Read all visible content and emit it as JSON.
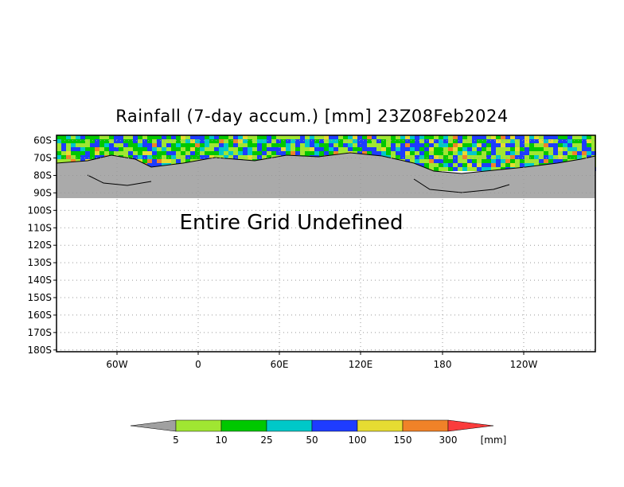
{
  "title": "Rainfall (7-day accum.) [mm] 23Z08Feb2024",
  "undefined_message": "Entire Grid Undefined",
  "map": {
    "projection": "lat-lon",
    "lon_labels": [
      "60W",
      "0",
      "60E",
      "120E",
      "180",
      "120W"
    ],
    "lat_labels": [
      "60S",
      "70S",
      "80S",
      "90S",
      "100S",
      "110S",
      "120S",
      "130S",
      "140S",
      "150S",
      "160S",
      "170S",
      "180S"
    ],
    "gridlines": "dotted",
    "undefined_fill_color": "#aaaaaa"
  },
  "colorbar": {
    "units": "[mm]",
    "thresholds": [
      "5",
      "10",
      "25",
      "50",
      "100",
      "150",
      "300"
    ],
    "colors": [
      "#a0a0a0",
      "#a0e632",
      "#00c800",
      "#00c8c8",
      "#1e3cff",
      "#e6dc32",
      "#f08228",
      "#fa3c3c"
    ]
  }
}
